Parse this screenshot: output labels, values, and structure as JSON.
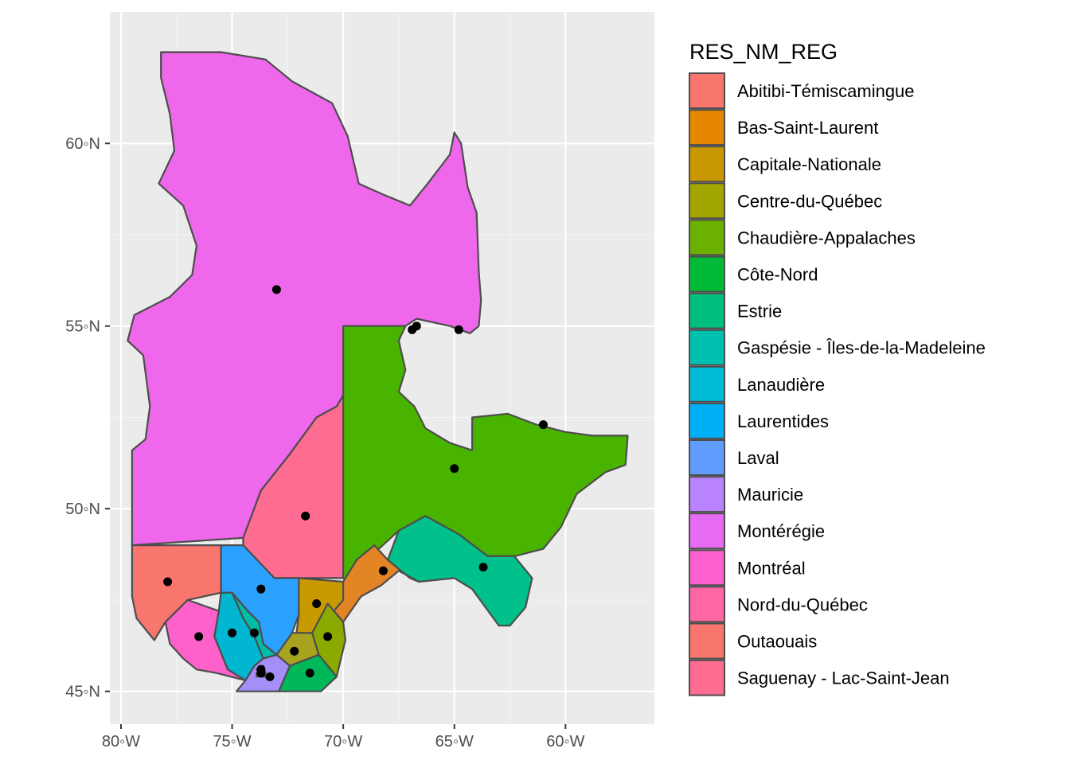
{
  "chart_data": {
    "type": "choropleth-map",
    "grid": true,
    "legend_position": "right",
    "xlim": [
      -80.5,
      -56.0
    ],
    "ylim": [
      44.1,
      63.6
    ],
    "x_ticks": [
      {
        "value": -80,
        "label": "80◦W"
      },
      {
        "value": -75,
        "label": "75◦W"
      },
      {
        "value": -70,
        "label": "70◦W"
      },
      {
        "value": -65,
        "label": "65◦W"
      },
      {
        "value": -60,
        "label": "60◦W"
      }
    ],
    "y_ticks": [
      {
        "value": 45,
        "label": "45◦N"
      },
      {
        "value": 50,
        "label": "50◦N"
      },
      {
        "value": 55,
        "label": "55◦N"
      },
      {
        "value": 60,
        "label": "60◦N"
      }
    ],
    "legend": {
      "title": "RES_NM_REG",
      "entries": [
        {
          "id": "abitibi",
          "label": "Abitibi-Témiscamingue",
          "color": "#F8766D"
        },
        {
          "id": "bas-saint-laurent",
          "label": "Bas-Saint-Laurent",
          "color": "#E58700"
        },
        {
          "id": "capitale-nationale",
          "label": "Capitale-Nationale",
          "color": "#C99800"
        },
        {
          "id": "centre-du-quebec",
          "label": "Centre-du-Québec",
          "color": "#A3A500"
        },
        {
          "id": "chaudiere-appalaches",
          "label": "Chaudière-Appalaches",
          "color": "#6BB100"
        },
        {
          "id": "cote-nord",
          "label": "Côte-Nord",
          "color": "#00BA38"
        },
        {
          "id": "estrie",
          "label": "Estrie",
          "color": "#00BF7D"
        },
        {
          "id": "gaspesie",
          "label": "Gaspésie - Îles-de-la-Madeleine",
          "color": "#00C0AF"
        },
        {
          "id": "lanaudiere",
          "label": "Lanaudière",
          "color": "#00BCD8"
        },
        {
          "id": "laurentides",
          "label": "Laurentides",
          "color": "#00B0F6"
        },
        {
          "id": "laval",
          "label": "Laval",
          "color": "#619CFF"
        },
        {
          "id": "mauricie",
          "label": "Mauricie",
          "color": "#B983FF"
        },
        {
          "id": "monteregie",
          "label": "Montérégie",
          "color": "#E76BF3"
        },
        {
          "id": "montreal",
          "label": "Montréal",
          "color": "#FD61D1"
        },
        {
          "id": "nord-du-quebec",
          "label": "Nord-du-Québec",
          "color": "#FF67A4"
        },
        {
          "id": "outaouais",
          "label": "Outaouais",
          "color": "#F8766D"
        },
        {
          "id": "saguenay",
          "label": "Saguenay - Lac-Saint-Jean",
          "color": "#FF6C91"
        }
      ]
    },
    "regions": [
      {
        "name": "Nord-du-Québec",
        "color": "#EF67EB",
        "outline": [
          [
            -78.2,
            62.5
          ],
          [
            -75.5,
            62.5
          ],
          [
            -73.5,
            62.3
          ],
          [
            -72.3,
            61.7
          ],
          [
            -70.5,
            61.1
          ],
          [
            -69.8,
            60.2
          ],
          [
            -69.3,
            58.9
          ],
          [
            -68.2,
            58.6
          ],
          [
            -67.0,
            58.3
          ],
          [
            -66.2,
            58.9
          ],
          [
            -65.2,
            59.7
          ],
          [
            -65.0,
            60.3
          ],
          [
            -64.7,
            60.0
          ],
          [
            -64.4,
            58.8
          ],
          [
            -64.0,
            58.1
          ],
          [
            -63.9,
            56.5
          ],
          [
            -63.8,
            55.7
          ],
          [
            -63.9,
            55.0
          ],
          [
            -64.3,
            54.8
          ],
          [
            -65.2,
            55.0
          ],
          [
            -66.7,
            55.2
          ],
          [
            -67.2,
            55.0
          ],
          [
            -70.0,
            55.0
          ],
          [
            -70.0,
            53.1
          ],
          [
            -70.3,
            52.8
          ],
          [
            -71.2,
            52.5
          ],
          [
            -72.4,
            51.5
          ],
          [
            -73.7,
            50.5
          ],
          [
            -74.5,
            49.2
          ],
          [
            -79.5,
            49.0
          ],
          [
            -79.5,
            51.6
          ],
          [
            -78.9,
            51.9
          ],
          [
            -78.7,
            52.8
          ],
          [
            -79.0,
            54.2
          ],
          [
            -79.7,
            54.6
          ],
          [
            -79.4,
            55.3
          ],
          [
            -77.8,
            55.8
          ],
          [
            -76.8,
            56.4
          ],
          [
            -76.6,
            57.2
          ],
          [
            -77.2,
            58.3
          ],
          [
            -78.3,
            58.9
          ],
          [
            -77.6,
            59.8
          ],
          [
            -77.8,
            60.8
          ],
          [
            -78.2,
            61.8
          ]
        ]
      },
      {
        "name": "Saguenay - Lac-Saint-Jean",
        "color": "#FF6C91",
        "outline": [
          [
            -70.0,
            53.1
          ],
          [
            -70.0,
            48.1
          ],
          [
            -72.0,
            48.1
          ],
          [
            -73.1,
            48.1
          ],
          [
            -74.5,
            49.0
          ],
          [
            -74.5,
            49.2
          ],
          [
            -73.7,
            50.5
          ],
          [
            -72.4,
            51.5
          ],
          [
            -71.2,
            52.5
          ],
          [
            -70.3,
            52.8
          ]
        ]
      },
      {
        "name": "Côte-Nord",
        "color": "#49B400",
        "outline": [
          [
            -70.0,
            55.0
          ],
          [
            -67.2,
            55.0
          ],
          [
            -67.5,
            54.6
          ],
          [
            -67.2,
            53.8
          ],
          [
            -67.5,
            53.2
          ],
          [
            -66.8,
            52.8
          ],
          [
            -66.3,
            52.2
          ],
          [
            -65.2,
            51.8
          ],
          [
            -64.2,
            51.6
          ],
          [
            -64.2,
            52.5
          ],
          [
            -62.6,
            52.6
          ],
          [
            -61.3,
            52.3
          ],
          [
            -60.0,
            52.1
          ],
          [
            -58.8,
            52.0
          ],
          [
            -57.2,
            52.0
          ],
          [
            -57.3,
            51.2
          ],
          [
            -58.2,
            51.0
          ],
          [
            -59.5,
            50.4
          ],
          [
            -60.2,
            49.5
          ],
          [
            -61.0,
            48.9
          ],
          [
            -62.3,
            48.7
          ],
          [
            -63.5,
            48.7
          ],
          [
            -64.8,
            49.3
          ],
          [
            -66.3,
            49.8
          ],
          [
            -67.5,
            49.4
          ],
          [
            -68.4,
            48.9
          ],
          [
            -69.0,
            48.4
          ],
          [
            -69.8,
            48.0
          ],
          [
            -70.0,
            48.1
          ]
        ]
      },
      {
        "name": "Gaspésie - Îles-de-la-Madeleine",
        "color": "#00C08B",
        "outline": [
          [
            -67.5,
            49.4
          ],
          [
            -66.3,
            49.8
          ],
          [
            -64.8,
            49.3
          ],
          [
            -63.5,
            48.7
          ],
          [
            -62.3,
            48.7
          ],
          [
            -61.5,
            48.1
          ],
          [
            -61.8,
            47.3
          ],
          [
            -62.5,
            46.8
          ],
          [
            -63.0,
            46.8
          ],
          [
            -64.2,
            47.8
          ],
          [
            -65.0,
            48.1
          ],
          [
            -66.6,
            48.0
          ],
          [
            -67.5,
            48.3
          ],
          [
            -68.0,
            48.6
          ]
        ]
      },
      {
        "name": "Bas-Saint-Laurent",
        "color": "#E38425",
        "outline": [
          [
            -68.0,
            48.6
          ],
          [
            -68.6,
            49.0
          ],
          [
            -69.4,
            48.6
          ],
          [
            -70.0,
            48.0
          ],
          [
            -70.7,
            47.4
          ],
          [
            -70.0,
            46.9
          ],
          [
            -69.2,
            47.6
          ],
          [
            -68.3,
            47.9
          ],
          [
            -67.5,
            48.3
          ],
          [
            -66.6,
            48.0
          ],
          [
            -67.0,
            48.1
          ]
        ]
      },
      {
        "name": "Capitale-Nationale",
        "color": "#C99A00",
        "outline": [
          [
            -70.0,
            48.0
          ],
          [
            -72.0,
            48.1
          ],
          [
            -72.0,
            47.1
          ],
          [
            -72.1,
            46.6
          ],
          [
            -71.4,
            46.6
          ],
          [
            -70.7,
            47.0
          ],
          [
            -70.0,
            47.5
          ]
        ]
      },
      {
        "name": "Chaudière-Appalaches",
        "color": "#8BAA00",
        "outline": [
          [
            -70.0,
            46.9
          ],
          [
            -70.7,
            47.4
          ],
          [
            -71.4,
            46.6
          ],
          [
            -71.1,
            46.0
          ],
          [
            -70.3,
            45.4
          ],
          [
            -69.9,
            46.4
          ]
        ]
      },
      {
        "name": "Centre-du-Québec",
        "color": "#A8A31F",
        "outline": [
          [
            -71.4,
            46.6
          ],
          [
            -72.3,
            46.6
          ],
          [
            -73.0,
            46.0
          ],
          [
            -72.4,
            45.7
          ],
          [
            -71.1,
            46.0
          ]
        ]
      },
      {
        "name": "Estrie",
        "color": "#00B85A",
        "outline": [
          [
            -72.4,
            45.7
          ],
          [
            -71.1,
            46.0
          ],
          [
            -70.3,
            45.4
          ],
          [
            -71.0,
            45.0
          ],
          [
            -72.0,
            45.0
          ],
          [
            -72.9,
            45.0
          ]
        ]
      },
      {
        "name": "Montérégie",
        "color": "#A58EF7",
        "outline": [
          [
            -73.0,
            46.0
          ],
          [
            -73.6,
            45.9
          ],
          [
            -74.0,
            45.7
          ],
          [
            -74.4,
            45.3
          ],
          [
            -74.8,
            45.0
          ],
          [
            -72.9,
            45.0
          ],
          [
            -72.4,
            45.7
          ]
        ]
      },
      {
        "name": "Laval",
        "color": "#00B0F6",
        "outline": [
          [
            -73.9,
            45.6
          ],
          [
            -73.6,
            45.7
          ],
          [
            -73.5,
            45.5
          ],
          [
            -73.8,
            45.5
          ]
        ]
      },
      {
        "name": "Montréal",
        "color": "#D271FF",
        "outline": [
          [
            -73.9,
            45.5
          ],
          [
            -73.5,
            45.5
          ],
          [
            -73.5,
            45.4
          ],
          [
            -73.9,
            45.4
          ]
        ]
      },
      {
        "name": "Mauricie",
        "color": "#2BA1FF",
        "outline": [
          [
            -75.5,
            49.0
          ],
          [
            -74.5,
            49.0
          ],
          [
            -73.1,
            48.1
          ],
          [
            -72.0,
            48.1
          ],
          [
            -72.0,
            47.1
          ],
          [
            -72.3,
            46.6
          ],
          [
            -73.0,
            46.0
          ],
          [
            -73.6,
            46.3
          ],
          [
            -73.8,
            46.9
          ],
          [
            -74.3,
            47.2
          ],
          [
            -75.0,
            47.7
          ],
          [
            -75.5,
            47.7
          ]
        ]
      },
      {
        "name": "Lanaudière",
        "color": "#00BDAA",
        "outline": [
          [
            -75.0,
            47.7
          ],
          [
            -74.3,
            47.2
          ],
          [
            -73.8,
            46.9
          ],
          [
            -73.6,
            46.3
          ],
          [
            -73.0,
            46.0
          ],
          [
            -73.6,
            45.9
          ],
          [
            -74.0,
            46.5
          ],
          [
            -74.5,
            47.0
          ]
        ]
      },
      {
        "name": "Laurentides",
        "color": "#00B6D0",
        "outline": [
          [
            -75.5,
            47.7
          ],
          [
            -75.0,
            47.7
          ],
          [
            -74.5,
            47.0
          ],
          [
            -74.0,
            46.5
          ],
          [
            -73.6,
            45.9
          ],
          [
            -74.0,
            45.7
          ],
          [
            -74.4,
            45.3
          ],
          [
            -75.2,
            45.6
          ],
          [
            -75.8,
            46.5
          ],
          [
            -75.6,
            47.2
          ]
        ]
      },
      {
        "name": "Outaouais",
        "color": "#FF61CB",
        "outline": [
          [
            -75.6,
            47.2
          ],
          [
            -75.8,
            46.5
          ],
          [
            -75.2,
            45.6
          ],
          [
            -74.4,
            45.3
          ],
          [
            -75.7,
            45.5
          ],
          [
            -76.6,
            45.6
          ],
          [
            -77.2,
            45.9
          ],
          [
            -77.8,
            46.3
          ],
          [
            -78.0,
            46.9
          ],
          [
            -77.0,
            47.5
          ]
        ]
      },
      {
        "name": "Abitibi-Témiscamingue",
        "color": "#F8766D",
        "outline": [
          [
            -79.5,
            49.0
          ],
          [
            -75.5,
            49.0
          ],
          [
            -75.5,
            47.7
          ],
          [
            -77.0,
            47.5
          ],
          [
            -78.0,
            46.9
          ],
          [
            -78.5,
            46.4
          ],
          [
            -79.3,
            47.0
          ],
          [
            -79.5,
            47.6
          ]
        ]
      }
    ],
    "points": [
      [
        -73.0,
        56.0
      ],
      [
        -64.8,
        54.9
      ],
      [
        -66.7,
        55.0
      ],
      [
        -66.9,
        54.9
      ],
      [
        -61.0,
        52.3
      ],
      [
        -65.0,
        51.1
      ],
      [
        -71.7,
        49.8
      ],
      [
        -77.9,
        48.0
      ],
      [
        -73.7,
        47.8
      ],
      [
        -68.2,
        48.3
      ],
      [
        -63.7,
        48.4
      ],
      [
        -71.2,
        47.4
      ],
      [
        -70.7,
        46.5
      ],
      [
        -76.5,
        46.5
      ],
      [
        -75.0,
        46.6
      ],
      [
        -74.0,
        46.6
      ],
      [
        -72.2,
        46.1
      ],
      [
        -71.5,
        45.5
      ],
      [
        -73.7,
        45.6
      ],
      [
        -73.7,
        45.5
      ],
      [
        -73.3,
        45.4
      ]
    ]
  }
}
